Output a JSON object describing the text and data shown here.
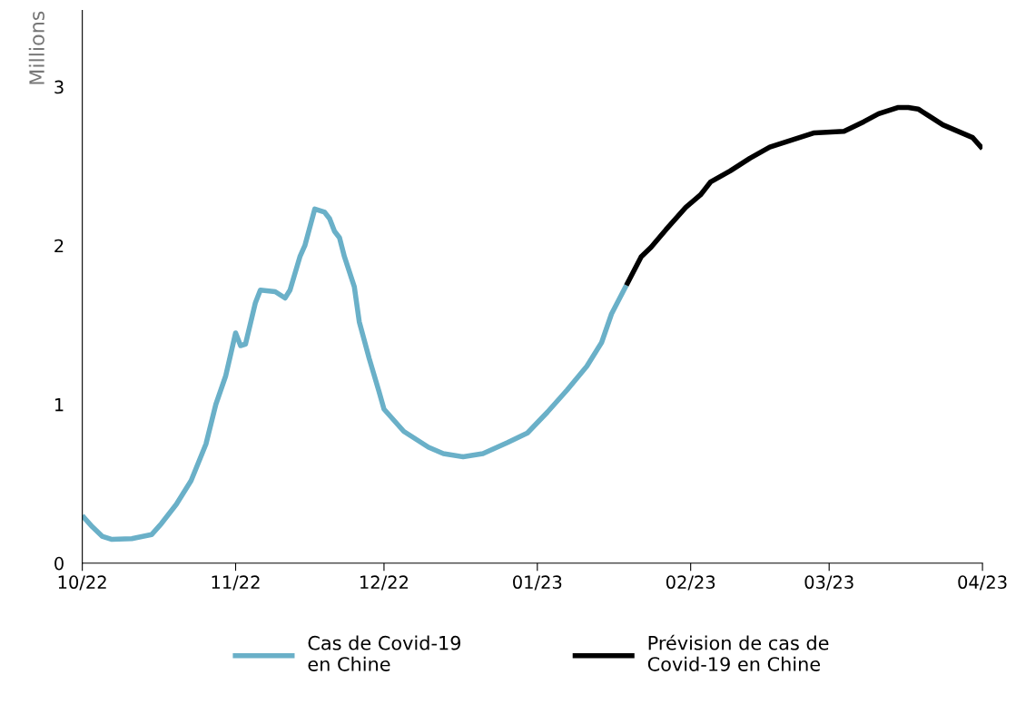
{
  "chart_data": {
    "type": "line",
    "ylabel": "Millions",
    "xlim": [
      "2022-10-01",
      "2023-04-01"
    ],
    "xticks": [
      {
        "value": "2022-10-01",
        "label": "10/22"
      },
      {
        "value": "2022-11-01",
        "label": "11/22"
      },
      {
        "value": "2022-12-01",
        "label": "12/22"
      },
      {
        "value": "2023-01-01",
        "label": "01/23"
      },
      {
        "value": "2023-02-01",
        "label": "02/23"
      },
      {
        "value": "2023-03-01",
        "label": "03/23"
      },
      {
        "value": "2023-04-01",
        "label": "04/23"
      }
    ],
    "ylim": [
      0,
      3.48
    ],
    "yticks": [
      0,
      1,
      2,
      3
    ],
    "grid": false,
    "legend": "bottom",
    "marker": "none",
    "line_style": "solid",
    "series": [
      {
        "name": "Cas de Covid-19\nen Chine",
        "color": "#6ab0c8",
        "x": [
          "2022-10-01",
          "2022-10-03",
          "2022-10-05",
          "2022-10-07",
          "2022-10-11",
          "2022-10-15",
          "2022-10-17",
          "2022-10-20",
          "2022-10-23",
          "2022-10-26",
          "2022-10-28",
          "2022-10-30",
          "2022-11-01",
          "2022-11-02",
          "2022-11-03",
          "2022-11-05",
          "2022-11-06",
          "2022-11-09",
          "2022-11-11",
          "2022-11-12",
          "2022-11-14",
          "2022-11-15",
          "2022-11-17",
          "2022-11-19",
          "2022-11-20",
          "2022-11-21",
          "2022-11-22",
          "2022-11-23",
          "2022-11-25",
          "2022-11-26",
          "2022-11-28",
          "2022-11-30",
          "2022-12-01",
          "2022-12-05",
          "2022-12-10",
          "2022-12-13",
          "2022-12-17",
          "2022-12-21",
          "2022-12-26",
          "2022-12-30",
          "2023-01-03",
          "2023-01-07",
          "2023-01-11",
          "2023-01-14",
          "2023-01-16",
          "2023-01-19"
        ],
        "values": [
          0.3,
          0.23,
          0.17,
          0.15,
          0.155,
          0.18,
          0.25,
          0.37,
          0.52,
          0.75,
          1.0,
          1.18,
          1.45,
          1.37,
          1.38,
          1.64,
          1.72,
          1.71,
          1.67,
          1.72,
          1.93,
          2.0,
          2.23,
          2.21,
          2.17,
          2.09,
          2.05,
          1.93,
          1.74,
          1.52,
          1.29,
          1.08,
          0.97,
          0.83,
          0.73,
          0.69,
          0.67,
          0.69,
          0.76,
          0.82,
          0.95,
          1.09,
          1.24,
          1.39,
          1.57,
          1.75
        ]
      },
      {
        "name": "Prévision de cas de\nCovid-19 en Chine",
        "color": "#000000",
        "x": [
          "2023-01-19",
          "2023-01-22",
          "2023-01-24",
          "2023-01-27",
          "2023-01-31",
          "2023-02-03",
          "2023-02-05",
          "2023-02-09",
          "2023-02-13",
          "2023-02-17",
          "2023-02-22",
          "2023-02-26",
          "2023-03-04",
          "2023-03-08",
          "2023-03-11",
          "2023-03-15",
          "2023-03-17",
          "2023-03-19",
          "2023-03-21",
          "2023-03-24",
          "2023-03-27",
          "2023-03-30",
          "2023-04-01"
        ],
        "values": [
          1.75,
          1.93,
          1.99,
          2.1,
          2.24,
          2.32,
          2.4,
          2.47,
          2.55,
          2.62,
          2.67,
          2.71,
          2.72,
          2.78,
          2.83,
          2.87,
          2.87,
          2.86,
          2.82,
          2.76,
          2.72,
          2.68,
          2.61
        ]
      }
    ]
  }
}
